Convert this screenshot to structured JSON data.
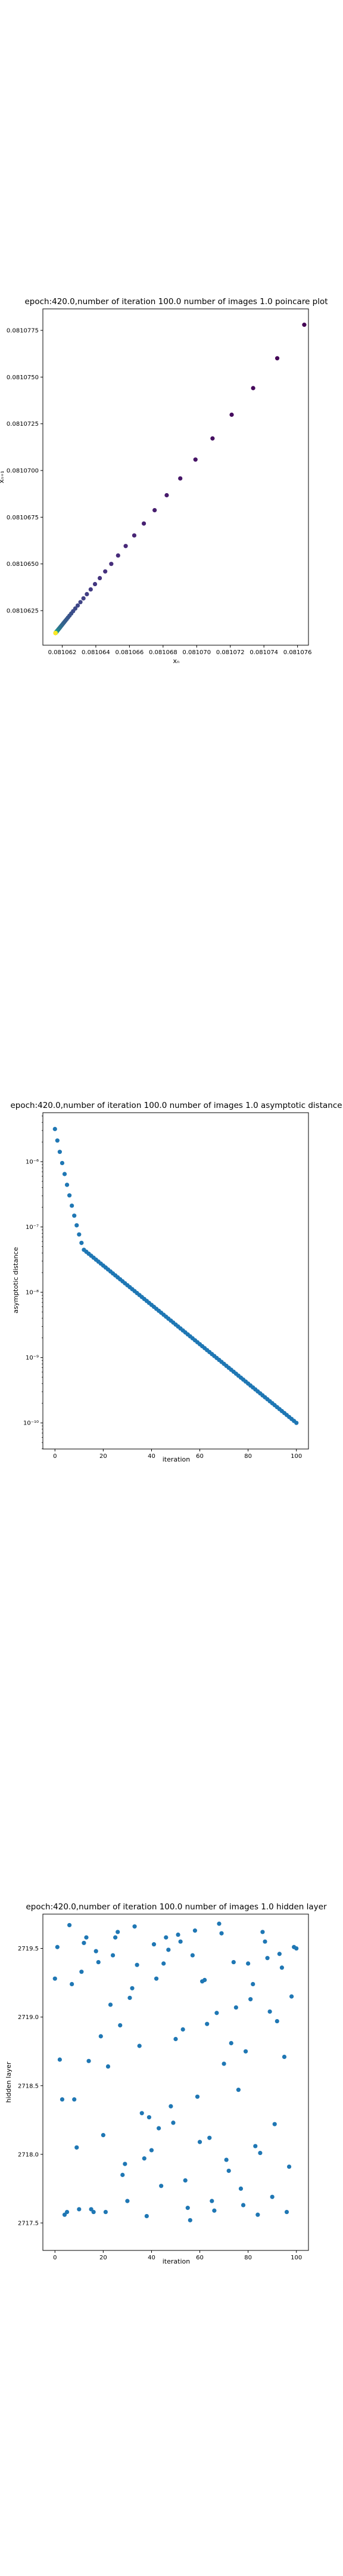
{
  "chart_data": [
    {
      "type": "scatter",
      "title": "epoch:420.0,number of iteration 100.0 number of images 1.0 poincare plot",
      "xlabel": "xₙ",
      "ylabel": "xₙ₊₁",
      "xlim": [
        0.08106085,
        0.08107665
      ],
      "ylim": [
        0.08106065,
        0.08107865
      ],
      "x_ticks": [
        0.081062,
        0.081064,
        0.081066,
        0.081068,
        0.08107,
        0.081072,
        0.081074,
        0.081076
      ],
      "x_tick_labels": [
        "0.081062",
        "0.081064",
        "0.081066",
        "0.081068",
        "0.081070",
        "0.081072",
        "0.081074",
        "0.081076"
      ],
      "y_ticks": [
        0.0810625,
        0.081065,
        0.0810675,
        0.08107,
        0.0810725,
        0.081075,
        0.0810775
      ],
      "y_tick_labels": [
        "0.0810625",
        "0.0810650",
        "0.0810675",
        "0.0810700",
        "0.0810725",
        "0.0810750",
        "0.0810775"
      ],
      "points": {
        "n": 99,
        "x_start": 0.0810764,
        "x_end": 0.0810616,
        "y_start": 0.0810778,
        "y_end": 0.0810613,
        "decay": 0.115,
        "colormap": "viridis"
      },
      "grid": false,
      "colors": {
        "early": "#440154",
        "late": "#fde725"
      }
    },
    {
      "type": "scatter",
      "title": "epoch:420.0,number of iteration 100.0  number of images 1.0 asymptotic distance",
      "xlabel": "iteration",
      "ylabel": "asymptotic distance",
      "xscale": "linear",
      "yscale": "log",
      "xlim": [
        -5,
        105
      ],
      "ylim_exponent": [
        -10.4,
        -5.25
      ],
      "x_ticks": [
        0,
        20,
        40,
        60,
        80,
        100
      ],
      "x_tick_labels": [
        "0",
        "20",
        "40",
        "60",
        "80",
        "100"
      ],
      "y_ticks_exponent": [
        -10,
        -9,
        -8,
        -7,
        -6
      ],
      "y_tick_labels": [
        "10⁻¹⁰",
        "10⁻⁹",
        "10⁻⁸",
        "10⁻⁷",
        "10⁻⁶"
      ],
      "series": {
        "iterations": [
          0,
          100
        ],
        "log10_distance_segments": [
          {
            "from_iter": 0,
            "to_iter": 12,
            "from_exp": -5.5,
            "to_exp": -7.35
          },
          {
            "from_iter": 12,
            "to_iter": 100,
            "from_exp": -7.35,
            "to_exp": -10.0
          }
        ]
      },
      "grid": false,
      "colors": {
        "points": "#1f77b4"
      }
    },
    {
      "type": "scatter",
      "title": "epoch:420.0,number of iteration 100.0  number of images 1.0 hidden layer",
      "xlabel": "iteration",
      "ylabel": "hidden layer",
      "xlim": [
        -5,
        105
      ],
      "ylim": [
        2717.3,
        2719.75
      ],
      "x_ticks": [
        0,
        20,
        40,
        60,
        80,
        100
      ],
      "x_tick_labels": [
        "0",
        "20",
        "40",
        "60",
        "80",
        "100"
      ],
      "y_ticks": [
        2717.5,
        2718.0,
        2718.5,
        2719.0,
        2719.5
      ],
      "y_tick_labels": [
        "2717.5",
        "2718.0",
        "2718.5",
        "2719.0",
        "2719.5"
      ],
      "series": {
        "values": [
          2719.28,
          2719.51,
          2718.69,
          2718.4,
          2717.56,
          2717.58,
          2719.67,
          2719.24,
          2718.4,
          2718.05,
          2717.6,
          2719.33,
          2719.54,
          2719.58,
          2718.68,
          2717.6,
          2717.58,
          2719.48,
          2719.4,
          2718.86,
          2718.14,
          2717.58,
          2718.64,
          2719.09,
          2719.45,
          2719.58,
          2719.62,
          2718.94,
          2717.85,
          2717.93,
          2717.66,
          2719.14,
          2719.21,
          2719.66,
          2719.38,
          2718.79,
          2718.3,
          2717.97,
          2717.55,
          2718.27,
          2718.03,
          2719.53,
          2719.28,
          2718.19,
          2717.77,
          2719.39,
          2719.58,
          2719.49,
          2718.35,
          2718.23,
          2718.84,
          2719.6,
          2719.55,
          2718.91,
          2717.81,
          2717.61,
          2717.52,
          2719.45,
          2719.63,
          2718.42,
          2718.09,
          2719.26,
          2719.27,
          2718.95,
          2718.12,
          2717.66,
          2717.59,
          2719.03,
          2719.68,
          2719.61,
          2718.66,
          2717.96,
          2717.88,
          2718.81,
          2719.4,
          2719.07,
          2718.47,
          2717.75,
          2717.63,
          2718.75,
          2719.39,
          2719.13,
          2719.24,
          2718.06,
          2717.56,
          2718.01,
          2719.62,
          2719.55,
          2719.43,
          2719.04,
          2717.69,
          2718.22,
          2718.97,
          2719.46,
          2719.36,
          2718.71,
          2717.58,
          2717.91,
          2719.15,
          2719.51,
          2719.5
        ]
      },
      "grid": false,
      "colors": {
        "points": "#1f77b4"
      }
    }
  ]
}
